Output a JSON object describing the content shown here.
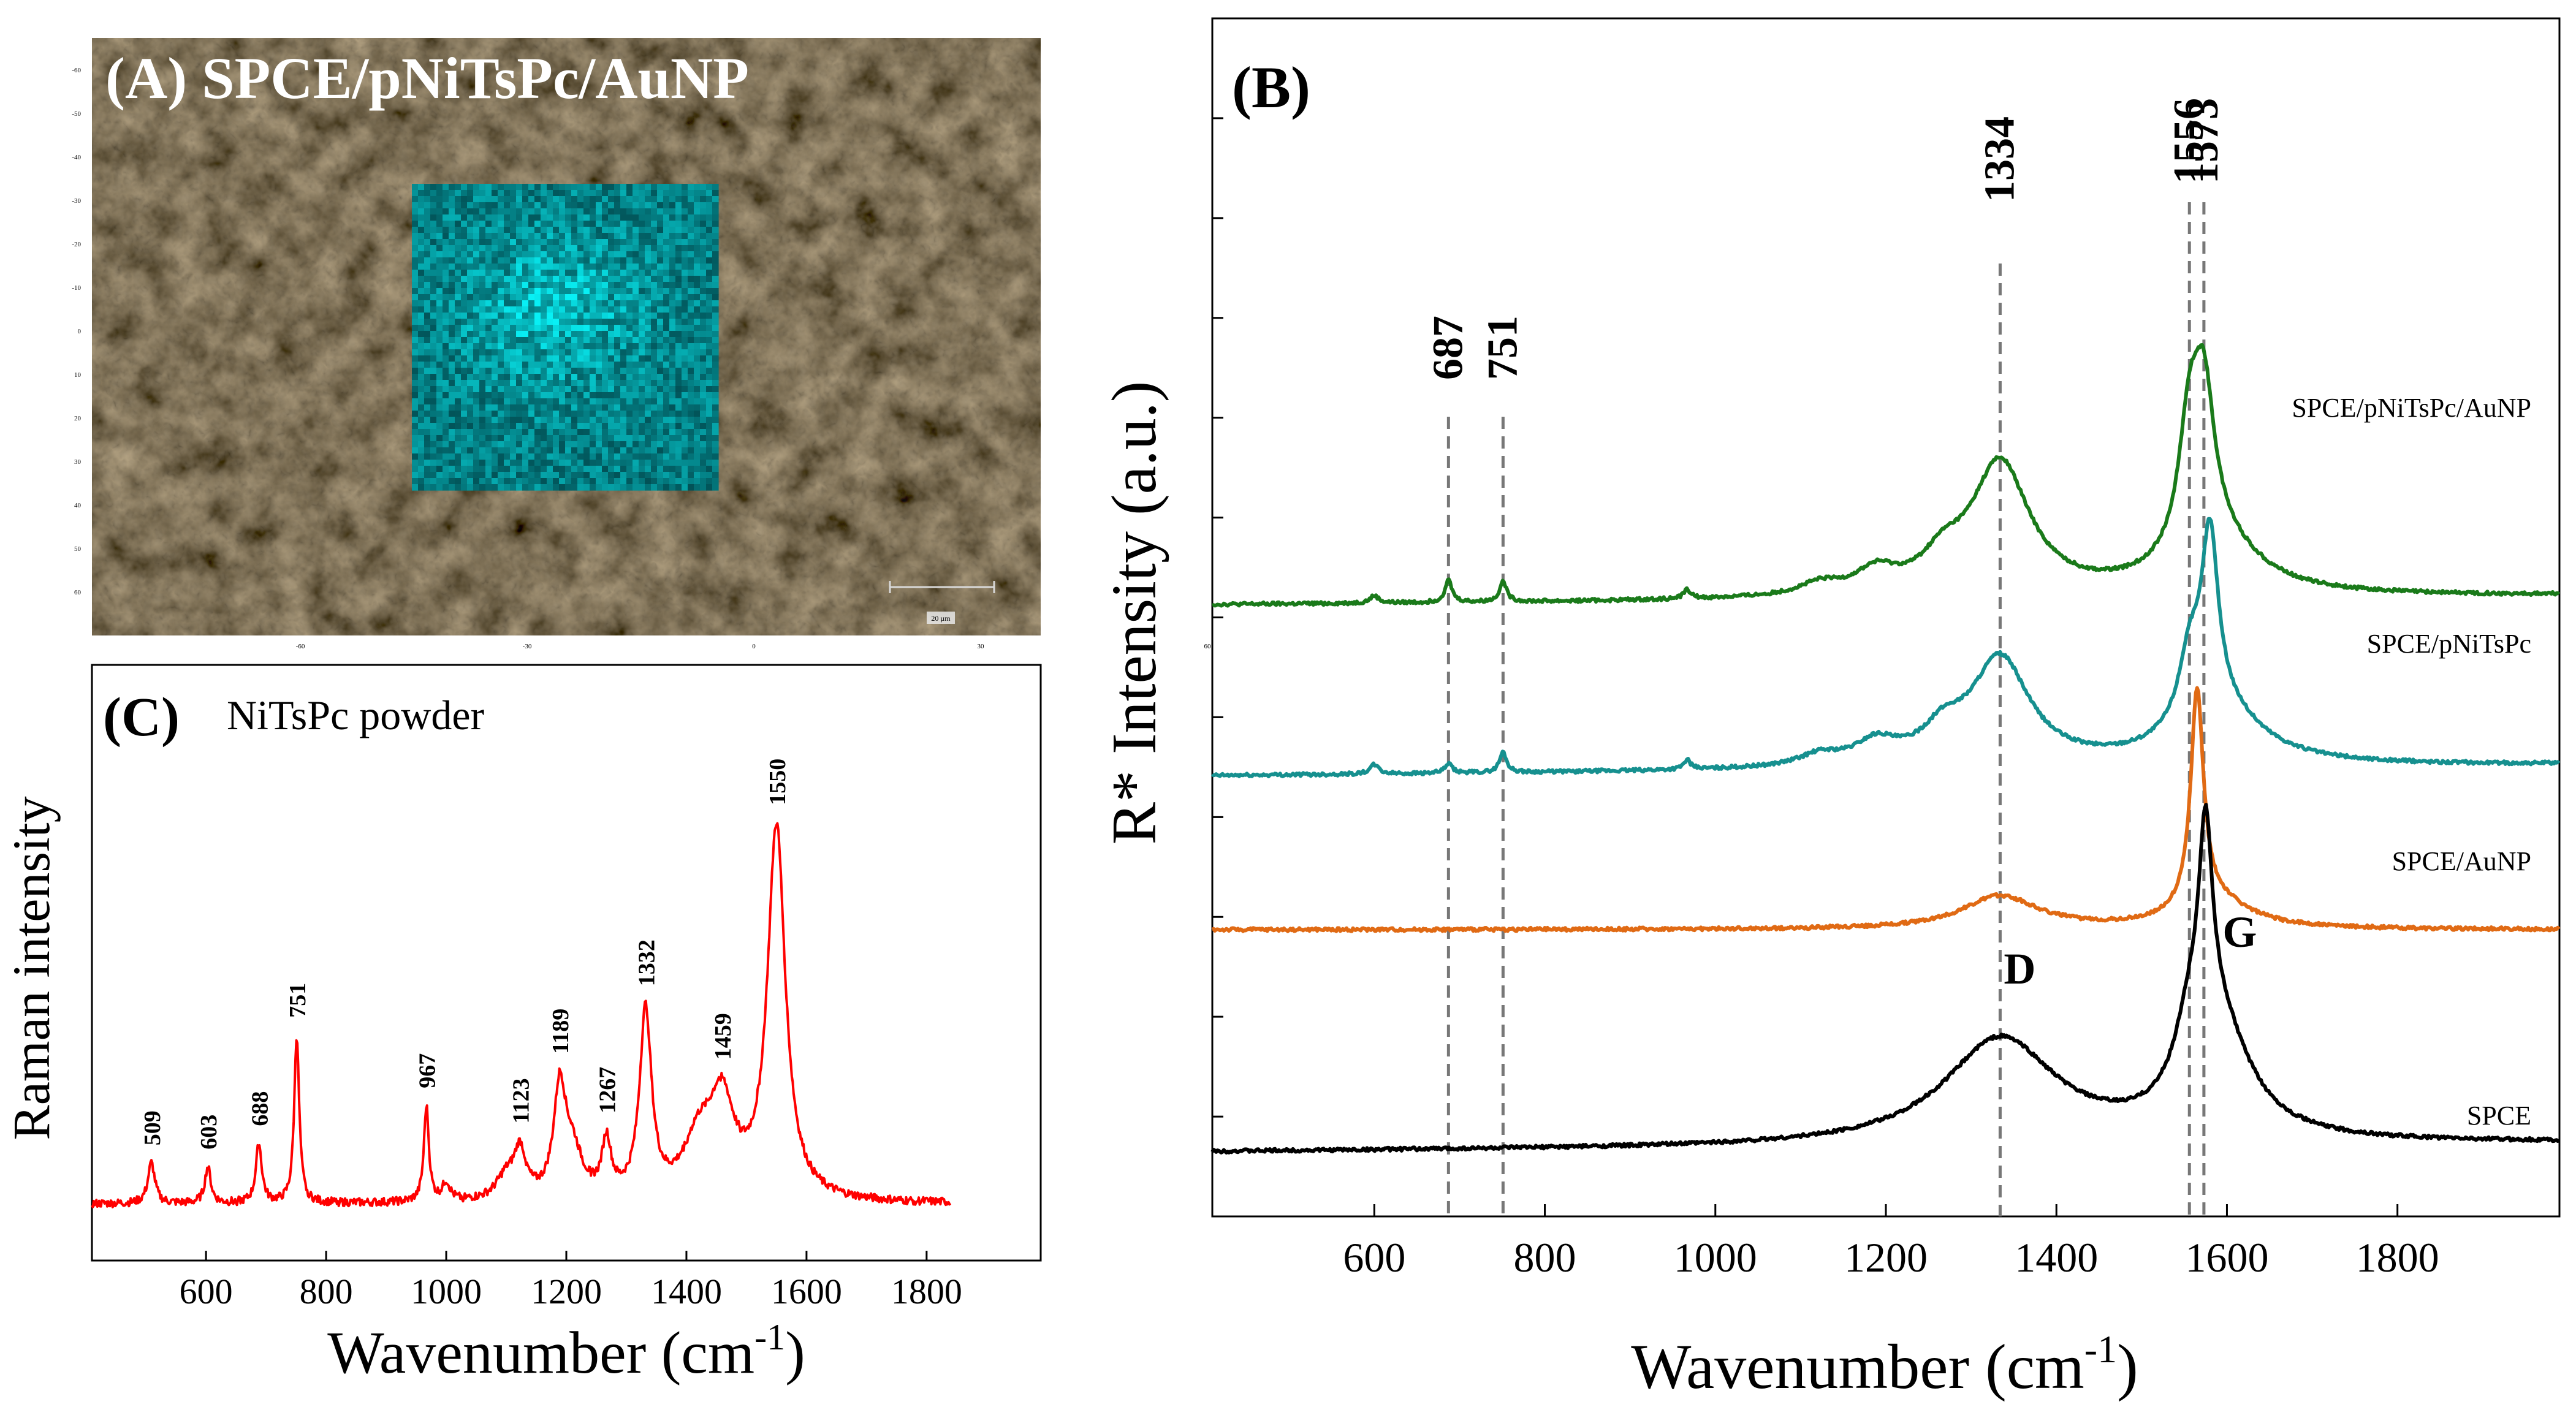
{
  "panel_a": {
    "title": "(A) SPCE/pNiTsPc/AuNP",
    "scale_bar_label": "20 µm",
    "axis_ticks_y": [
      "-60",
      "-50",
      "-40",
      "-30",
      "-20",
      "-10",
      "0",
      "10",
      "20",
      "30",
      "40",
      "50",
      "60"
    ],
    "axis_ticks_x": [
      "-60",
      "-30",
      "0",
      "30",
      "60"
    ],
    "colors": {
      "background": "#2b2419",
      "map": "#19d8d8"
    }
  },
  "chart_data": [
    {
      "id": "panel-b",
      "type": "line",
      "title": "(B)",
      "xlabel": "Wavenumber (cm",
      "xlabel_sup": "-1",
      "xlabel_close": ")",
      "ylabel": "R* Intensity (a.u.)",
      "xlim": [
        410,
        1990
      ],
      "x_ticks": [
        600,
        800,
        1000,
        1200,
        1400,
        1600,
        1800
      ],
      "y_ticks_count": 12,
      "reference_lines": [
        {
          "x": 687,
          "label": "687"
        },
        {
          "x": 751,
          "label": "751"
        },
        {
          "x": 1334,
          "label": "1334"
        },
        {
          "x": 1556,
          "label": "1556"
        },
        {
          "x": 1573,
          "label": "1573"
        }
      ],
      "annotations": [
        {
          "x": 1357,
          "text": "D"
        },
        {
          "x": 1615,
          "text": "G"
        }
      ],
      "series": [
        {
          "name": "SPCE/pNiTsPc/AuNP",
          "color": "#1a7a1a",
          "offset": 3.2,
          "peaks": [
            [
              600,
              0.04,
              6
            ],
            [
              687,
              0.12,
              5
            ],
            [
              751,
              0.11,
              5
            ],
            [
              967,
              0.05,
              5
            ],
            [
              1123,
              0.06,
              30
            ],
            [
              1189,
              0.12,
              30
            ],
            [
              1267,
              0.15,
              30
            ],
            [
              1334,
              0.72,
              42
            ],
            [
              1556,
              0.63,
              15
            ],
            [
              1573,
              0.76,
              15
            ],
            [
              1585,
              0.3,
              60
            ]
          ],
          "baseline": [
            0.0,
            0.05
          ]
        },
        {
          "name": "SPCE/pNiTsPc",
          "color": "#16908f",
          "offset": 2.2,
          "peaks": [
            [
              600,
              0.05,
              6
            ],
            [
              687,
              0.05,
              5
            ],
            [
              751,
              0.11,
              5
            ],
            [
              967,
              0.05,
              5
            ],
            [
              1123,
              0.06,
              30
            ],
            [
              1189,
              0.12,
              30
            ],
            [
              1267,
              0.15,
              30
            ],
            [
              1334,
              0.58,
              42
            ],
            [
              1556,
              0.35,
              15
            ],
            [
              1580,
              0.95,
              12
            ],
            [
              1590,
              0.3,
              60
            ]
          ],
          "baseline": [
            0.0,
            0.06
          ]
        },
        {
          "name": "SPCE/AuNP",
          "color": "#e06a14",
          "offset": 1.3,
          "peaks": [
            [
              1334,
              0.18,
              55
            ],
            [
              1565,
              1.18,
              9
            ],
            [
              1585,
              0.15,
              50
            ]
          ],
          "baseline": [
            0.0,
            0.0
          ]
        },
        {
          "name": "SPCE",
          "color": "#000000",
          "offset": 0.0,
          "peaks": [
            [
              1334,
              0.58,
              80
            ],
            [
              1555,
              0.3,
              20
            ],
            [
              1575,
              1.1,
              10
            ],
            [
              1590,
              0.6,
              45
            ]
          ],
          "baseline": [
            0.0,
            0.05
          ]
        }
      ]
    },
    {
      "id": "panel-c",
      "type": "line",
      "title": "(C)",
      "subtitle": "NiTsPc powder",
      "xlabel": "Wavenumber (cm",
      "xlabel_sup": "-1",
      "xlabel_close": ")",
      "ylabel": "Raman intensity",
      "xlim": [
        410,
        1990
      ],
      "x_ticks": [
        600,
        800,
        1000,
        1200,
        1400,
        1600,
        1800
      ],
      "series": [
        {
          "name": "NiTsPc powder",
          "color": "#ff0000",
          "peaks": [
            [
              509,
              0.09,
              7
            ],
            [
              603,
              0.08,
              6
            ],
            [
              688,
              0.13,
              6
            ],
            [
              751,
              0.37,
              5
            ],
            [
              967,
              0.21,
              5
            ],
            [
              1000,
              0.04,
              8
            ],
            [
              1100,
              0.05,
              20
            ],
            [
              1123,
              0.1,
              12
            ],
            [
              1189,
              0.23,
              12
            ],
            [
              1210,
              0.1,
              20
            ],
            [
              1267,
              0.12,
              9
            ],
            [
              1332,
              0.41,
              12
            ],
            [
              1420,
              0.12,
              30
            ],
            [
              1459,
              0.2,
              25
            ],
            [
              1550,
              0.82,
              18
            ]
          ]
        }
      ],
      "peak_labels": [
        {
          "x": 509,
          "label": "509"
        },
        {
          "x": 603,
          "label": "603"
        },
        {
          "x": 688,
          "label": "688"
        },
        {
          "x": 751,
          "label": "751"
        },
        {
          "x": 967,
          "label": "967"
        },
        {
          "x": 1123,
          "label": "1123"
        },
        {
          "x": 1189,
          "label": "1189"
        },
        {
          "x": 1267,
          "label": "1267"
        },
        {
          "x": 1332,
          "label": "1332"
        },
        {
          "x": 1459,
          "label": "1459"
        },
        {
          "x": 1550,
          "label": "1550"
        }
      ]
    }
  ]
}
